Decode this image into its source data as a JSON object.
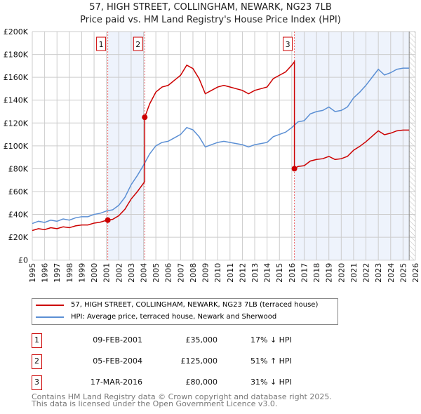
{
  "chart_data": {
    "type": "line",
    "title": "57, HIGH STREET, COLLINGHAM, NEWARK, NG23 7LB",
    "subtitle": "Price paid vs. HM Land Registry's House Price Index (HPI)",
    "xlim": [
      1995,
      2026
    ],
    "ylim": [
      0,
      200000
    ],
    "x_ticks": [
      "1995",
      "1996",
      "1997",
      "1998",
      "1999",
      "2000",
      "2001",
      "2002",
      "2003",
      "2004",
      "2005",
      "2006",
      "2007",
      "2008",
      "2009",
      "2010",
      "2011",
      "2012",
      "2013",
      "2014",
      "2015",
      "2016",
      "2017",
      "2018",
      "2019",
      "2020",
      "2021",
      "2022",
      "2023",
      "2024",
      "2025",
      "2026"
    ],
    "y_ticks": [
      "£0",
      "£20K",
      "£40K",
      "£60K",
      "£80K",
      "£100K",
      "£120K",
      "£140K",
      "£160K",
      "£180K",
      "£200K"
    ],
    "colors": {
      "property": "#cc0000",
      "hpi": "#5b8fd4",
      "shade": "#eef3fc"
    },
    "hpi_series": {
      "name": "HPI: Average price, terraced house, Newark and Sherwood",
      "x": [
        1995,
        1995.5,
        1996,
        1996.5,
        1997,
        1997.5,
        1998,
        1998.5,
        1999,
        1999.5,
        2000,
        2000.5,
        2001,
        2001.5,
        2002,
        2002.5,
        2003,
        2003.5,
        2004,
        2004.5,
        2005,
        2005.5,
        2006,
        2006.5,
        2007,
        2007.5,
        2008,
        2008.5,
        2009,
        2009.5,
        2010,
        2010.5,
        2011,
        2011.5,
        2012,
        2012.5,
        2013,
        2013.5,
        2014,
        2014.5,
        2015,
        2015.5,
        2016,
        2016.5,
        2017,
        2017.5,
        2018,
        2018.5,
        2019,
        2019.5,
        2020,
        2020.5,
        2021,
        2021.5,
        2022,
        2022.5,
        2023,
        2023.5,
        2024,
        2024.5,
        2025,
        2025.5
      ],
      "y": [
        32000,
        34000,
        33000,
        35000,
        34000,
        36000,
        35000,
        37000,
        38000,
        38000,
        40000,
        41000,
        43000,
        44000,
        48000,
        55000,
        66000,
        74000,
        83000,
        93000,
        100000,
        103000,
        104000,
        107000,
        110000,
        116000,
        114000,
        108000,
        99000,
        101000,
        103000,
        104000,
        103000,
        102000,
        101000,
        99000,
        101000,
        102000,
        103000,
        108000,
        110000,
        112000,
        116000,
        121000,
        122000,
        128000,
        130000,
        131000,
        134000,
        130000,
        131000,
        134000,
        142000,
        147000,
        153000,
        160000,
        167000,
        162000,
        164000,
        167000,
        168000,
        168000
      ]
    },
    "property_series": {
      "name": "57, HIGH STREET, COLLINGHAM, NEWARK, NG23 7LB (terraced house)"
    },
    "sales": [
      {
        "label": "1",
        "x": 2001.11,
        "date": "09-FEB-2001",
        "price": 35000,
        "price_label": "£35,000",
        "hpi": "17% ↓ HPI"
      },
      {
        "label": "2",
        "x": 2004.1,
        "date": "05-FEB-2004",
        "price": 125000,
        "price_label": "£125,000",
        "hpi": "51% ↑ HPI"
      },
      {
        "label": "3",
        "x": 2016.21,
        "date": "17-MAR-2016",
        "price": 80000,
        "price_label": "£80,000",
        "hpi": "31% ↓ HPI"
      }
    ]
  },
  "footer": {
    "line1": "Contains HM Land Registry data © Crown copyright and database right 2025.",
    "line2": "This data is licensed under the Open Government Licence v3.0."
  }
}
